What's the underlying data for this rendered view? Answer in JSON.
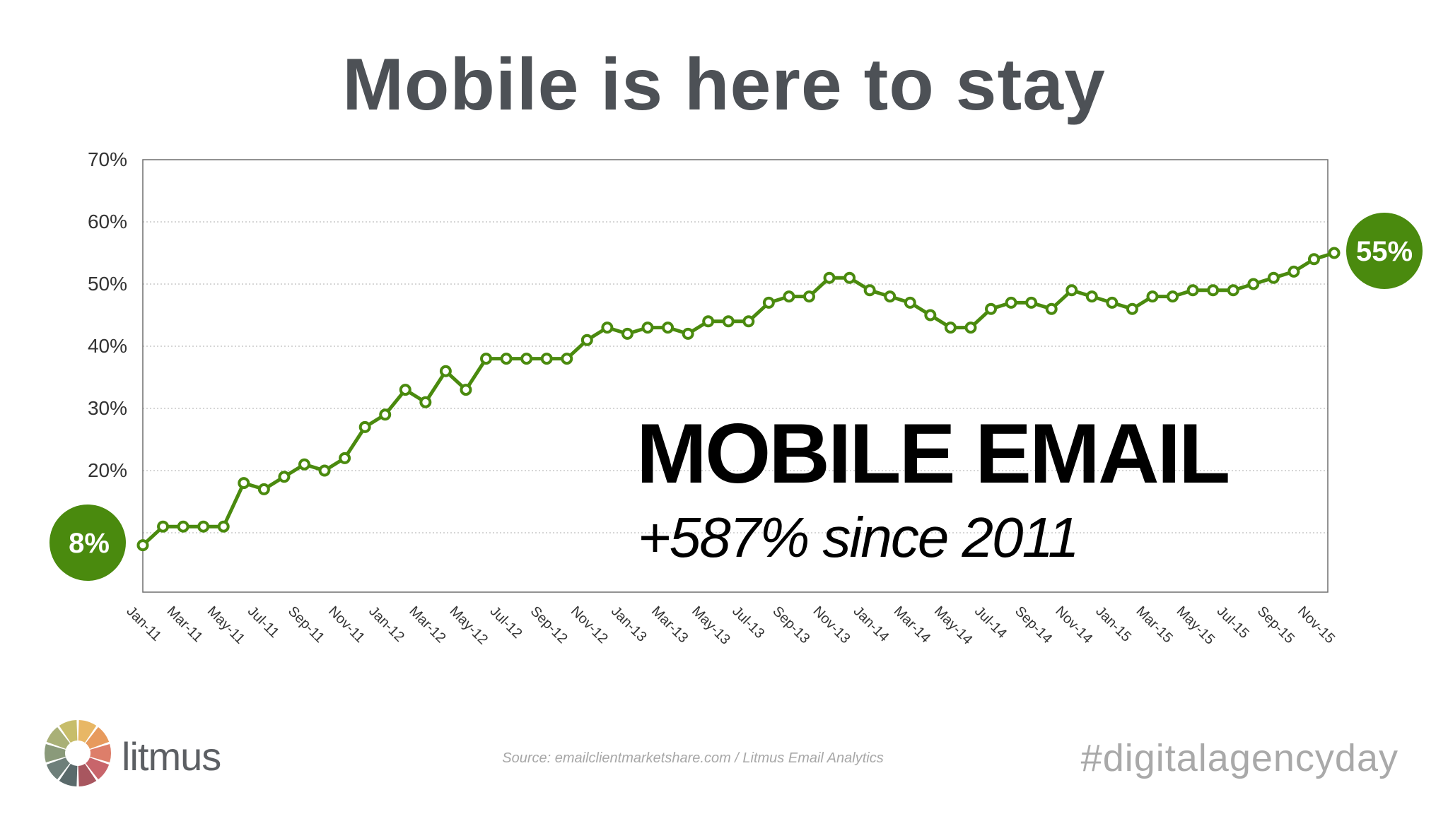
{
  "title": "Mobile is here to stay",
  "chart_data": {
    "type": "line",
    "title": "",
    "xlabel": "",
    "ylabel": "",
    "ylim": [
      0,
      70
    ],
    "yticks": [
      "70%",
      "60%",
      "50%",
      "40%",
      "30%",
      "20%"
    ],
    "ytick_values": [
      70,
      60,
      50,
      40,
      30,
      20
    ],
    "grid": true,
    "x_tick_labels": [
      "Jan-11",
      "Mar-11",
      "May-11",
      "Jul-11",
      "Sep-11",
      "Nov-11",
      "Jan-12",
      "Mar-12",
      "May-12",
      "Jul-12",
      "Sep-12",
      "Nov-12",
      "Jan-13",
      "Mar-13",
      "May-13",
      "Jul-13",
      "Sep-13",
      "Nov-13",
      "Jan-14",
      "Mar-14",
      "May-14",
      "Jul-14",
      "Sep-14",
      "Nov-14",
      "Jan-15",
      "Mar-15",
      "May-15",
      "Jul-15",
      "Sep-15",
      "Nov-15"
    ],
    "x": [
      "Jan-11",
      "Feb-11",
      "Mar-11",
      "Apr-11",
      "May-11",
      "Jun-11",
      "Jul-11",
      "Aug-11",
      "Sep-11",
      "Oct-11",
      "Nov-11",
      "Dec-11",
      "Jan-12",
      "Feb-12",
      "Mar-12",
      "Apr-12",
      "May-12",
      "Jun-12",
      "Jul-12",
      "Aug-12",
      "Sep-12",
      "Oct-12",
      "Nov-12",
      "Dec-12",
      "Jan-13",
      "Feb-13",
      "Mar-13",
      "Apr-13",
      "May-13",
      "Jun-13",
      "Jul-13",
      "Aug-13",
      "Sep-13",
      "Oct-13",
      "Nov-13",
      "Dec-13",
      "Jan-14",
      "Feb-14",
      "Mar-14",
      "Apr-14",
      "May-14",
      "Jun-14",
      "Jul-14",
      "Aug-14",
      "Sep-14",
      "Oct-14",
      "Nov-14",
      "Dec-14",
      "Jan-15",
      "Feb-15",
      "Mar-15",
      "Apr-15",
      "May-15",
      "Jun-15",
      "Jul-15",
      "Aug-15",
      "Sep-15",
      "Oct-15",
      "Nov-15",
      "Dec-15"
    ],
    "series": [
      {
        "values": [
          8,
          11,
          11,
          11,
          11,
          18,
          17,
          19,
          21,
          20,
          22,
          27,
          29,
          33,
          31,
          36,
          33,
          38,
          38,
          38,
          38,
          38,
          41,
          43,
          42,
          43,
          43,
          42,
          44,
          44,
          44,
          47,
          48,
          48,
          51,
          51,
          49,
          48,
          47,
          45,
          43,
          43,
          46,
          47,
          47,
          46,
          49,
          48,
          47,
          46,
          48,
          48,
          49,
          49,
          49,
          50,
          51,
          52,
          54,
          55
        ],
        "color": "#4a8a0e"
      }
    ],
    "start_badge": "8%",
    "end_badge": "55%",
    "badge_color": "#4a8a0e",
    "annotation_headline": "MOBILE EMAIL",
    "annotation_subline": "+587% since 2011"
  },
  "source": "Source: emailclientmarketshare.com / Litmus Email Analytics",
  "brand": {
    "logo_text": "litmus",
    "logo_colors": [
      "#e8b765",
      "#e79a5d",
      "#dd7e6a",
      "#c8656b",
      "#a8565f",
      "#5a6a6b",
      "#6e7f7a",
      "#8a9a7a",
      "#a9b077",
      "#c7bd6a"
    ]
  },
  "hashtag": "#digitalagencyday"
}
